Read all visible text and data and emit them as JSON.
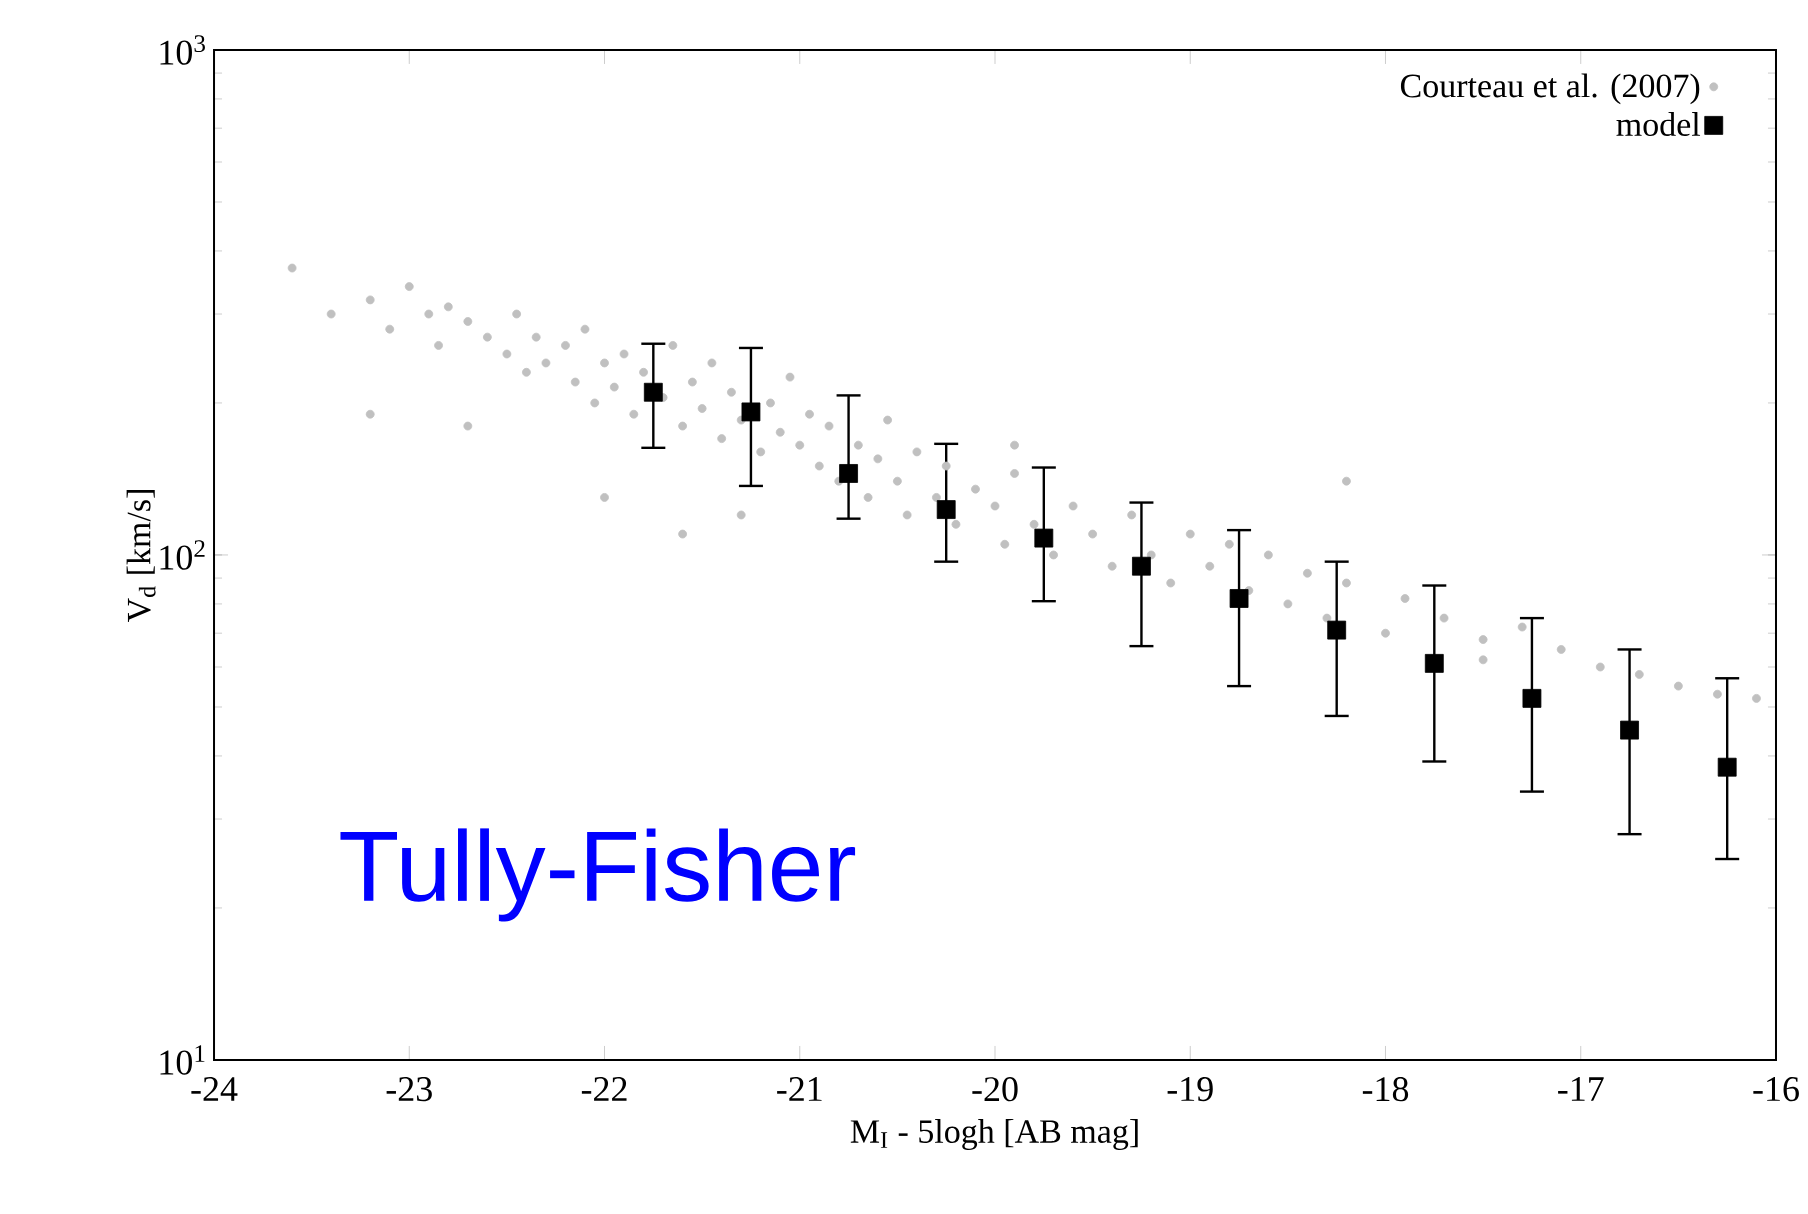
{
  "chart_data": {
    "type": "scatter",
    "xlabel": "M$_{I}$ - 5logh [AB mag]",
    "ylabel": "V$_{d}$ [km/s]",
    "annotations": [
      "Tully-Fisher"
    ],
    "xlim": [
      -24,
      -16
    ],
    "xticks": [
      -24,
      -23,
      -22,
      -21,
      -20,
      -19,
      -18,
      -17,
      -16
    ],
    "ylim": [
      10,
      1000
    ],
    "yticks": [
      {
        "value": 10,
        "label": "10$^{1}$"
      },
      {
        "value": 100,
        "label": "10$^{2}$"
      },
      {
        "value": 1000,
        "label": "10$^{3}$"
      }
    ],
    "log": "y",
    "legend": "top right",
    "series": [
      {
        "name": "Courteau et al. (2007)",
        "color": "#c0c0c0",
        "marker": "circle",
        "x": [
          -23.6,
          -23.4,
          -23.2,
          -23.1,
          -23.0,
          -22.9,
          -22.85,
          -22.8,
          -22.7,
          -22.6,
          -22.5,
          -22.45,
          -22.4,
          -22.35,
          -22.3,
          -22.2,
          -22.15,
          -22.1,
          -22.05,
          -22.0,
          -21.95,
          -21.9,
          -21.85,
          -21.8,
          -21.7,
          -21.65,
          -21.6,
          -21.55,
          -21.5,
          -21.45,
          -21.4,
          -21.35,
          -21.3,
          -21.2,
          -21.15,
          -21.1,
          -21.05,
          -21.0,
          -20.95,
          -20.9,
          -20.85,
          -20.8,
          -20.7,
          -20.65,
          -20.6,
          -20.55,
          -20.5,
          -20.45,
          -20.4,
          -20.3,
          -20.25,
          -20.2,
          -20.1,
          -20.0,
          -19.95,
          -19.9,
          -19.8,
          -19.7,
          -19.6,
          -19.5,
          -19.4,
          -19.3,
          -19.2,
          -19.1,
          -19.0,
          -18.9,
          -18.8,
          -18.7,
          -18.6,
          -18.5,
          -18.4,
          -18.3,
          -18.2,
          -18.0,
          -17.9,
          -17.7,
          -17.5,
          -17.3,
          -17.1,
          -16.9,
          -16.7,
          -16.5,
          -16.3,
          -16.1,
          -23.2,
          -22.7,
          -22.0,
          -21.6,
          -21.3,
          -19.9,
          -18.2,
          -17.5
        ],
        "values": [
          370,
          300,
          320,
          280,
          340,
          300,
          260,
          310,
          290,
          270,
          250,
          300,
          230,
          270,
          240,
          260,
          220,
          280,
          200,
          240,
          215,
          250,
          190,
          230,
          205,
          260,
          180,
          220,
          195,
          240,
          170,
          210,
          185,
          160,
          200,
          175,
          225,
          165,
          190,
          150,
          180,
          140,
          165,
          130,
          155,
          185,
          140,
          120,
          160,
          130,
          150,
          115,
          135,
          125,
          105,
          145,
          115,
          100,
          125,
          110,
          95,
          120,
          100,
          88,
          110,
          95,
          105,
          85,
          100,
          80,
          92,
          75,
          88,
          70,
          82,
          75,
          68,
          72,
          65,
          60,
          58,
          55,
          53,
          52,
          190,
          180,
          130,
          110,
          120,
          165,
          140,
          62
        ]
      },
      {
        "name": "model",
        "color": "#000000",
        "marker": "square",
        "x": [
          -21.75,
          -21.25,
          -20.75,
          -20.25,
          -19.75,
          -19.25,
          -18.75,
          -18.25,
          -17.75,
          -17.25,
          -16.75,
          -16.25
        ],
        "values": [
          210,
          192,
          145,
          123,
          108,
          95,
          82,
          71,
          61,
          52,
          45,
          38
        ],
        "errors": [
          [
            163,
            262
          ],
          [
            137,
            257
          ],
          [
            118,
            207
          ],
          [
            97,
            166
          ],
          [
            81,
            149
          ],
          [
            66,
            127
          ],
          [
            55,
            112
          ],
          [
            48,
            97
          ],
          [
            39,
            87
          ],
          [
            34,
            75
          ],
          [
            28,
            65
          ],
          [
            25,
            57
          ]
        ]
      }
    ]
  }
}
